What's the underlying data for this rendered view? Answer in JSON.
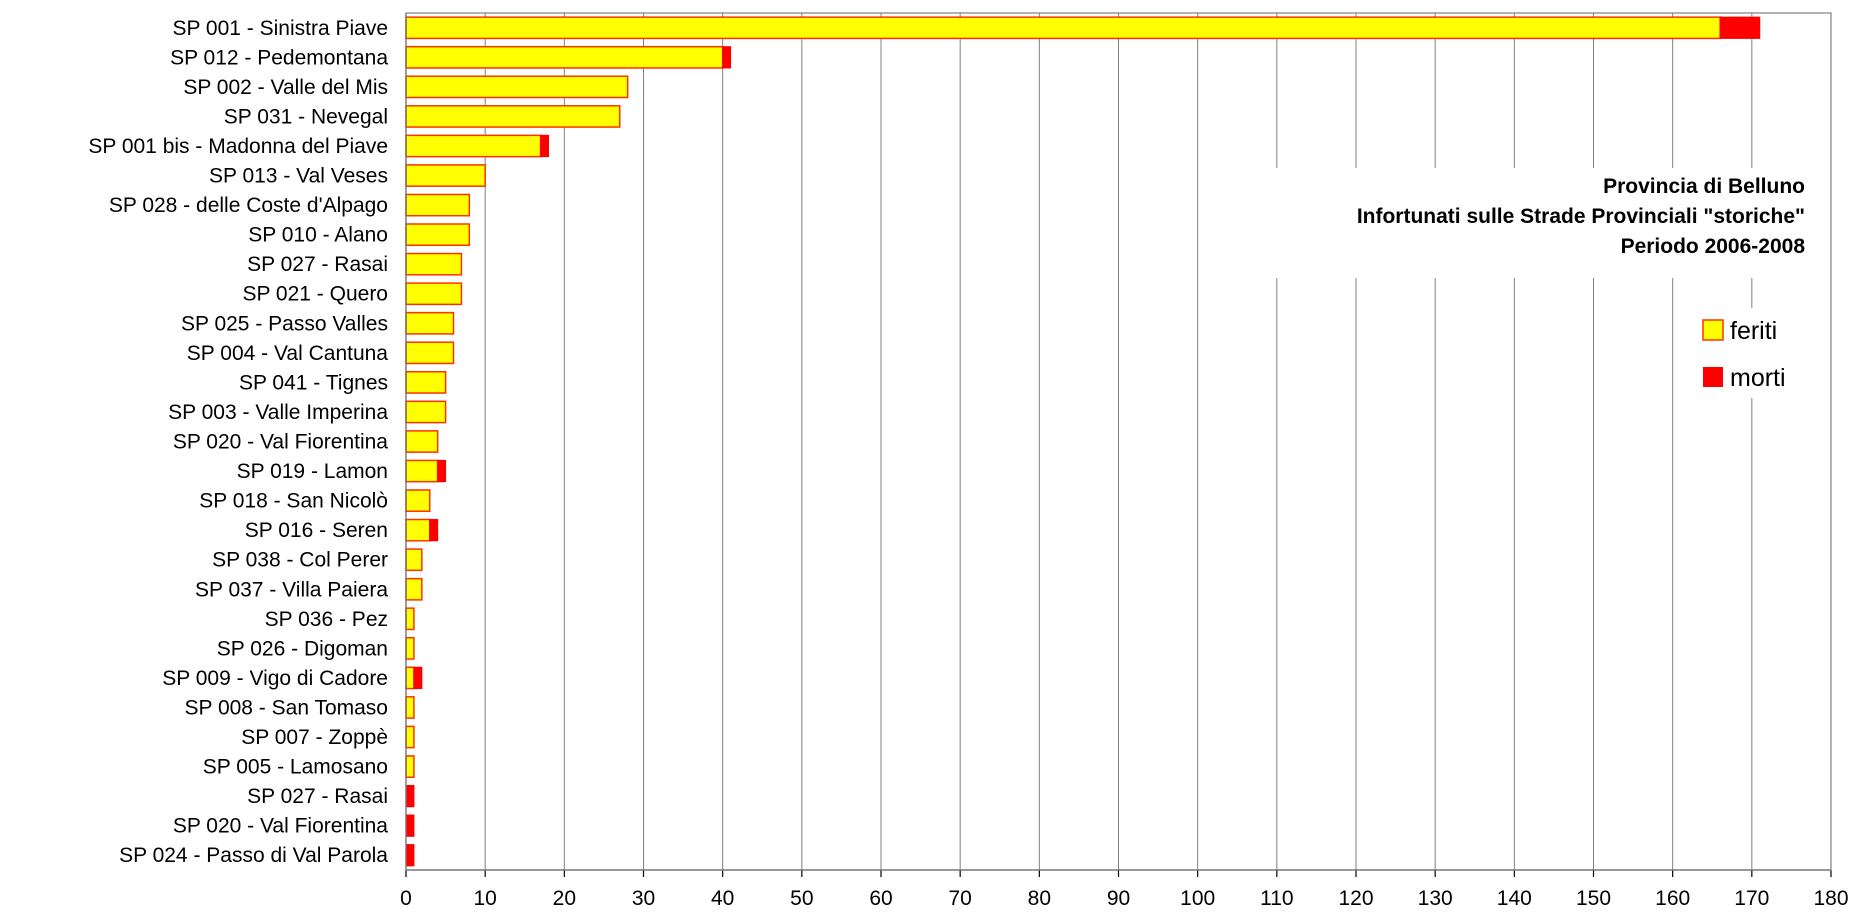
{
  "chart_data": {
    "type": "bar",
    "orientation": "horizontal",
    "stacked": true,
    "title_lines": [
      "Provincia di Belluno",
      "Infortunati sulle Strade Provinciali \"storiche\"",
      "Periodo 2006-2008"
    ],
    "categories": [
      "SP 001 -  Sinistra Piave",
      "SP 012 -  Pedemontana",
      "SP 002 -  Valle del Mis",
      "SP 031 -  Nevegal",
      "SP 001 bis -  Madonna del Piave",
      "SP 013 -  Val Veses",
      "SP 028 -  delle Coste d'Alpago",
      "SP 010 -  Alano",
      "SP 027 -  Rasai",
      "SP 021 -  Quero",
      "SP 025 -  Passo Valles",
      "SP 004 -  Val Cantuna",
      "SP 041 -  Tignes",
      "SP 003 -  Valle Imperina",
      "SP 020 -  Val Fiorentina",
      "SP 019 -  Lamon",
      "SP 018 -  San Nicolò",
      "SP 016 -  Seren",
      "SP 038 -  Col Perer",
      "SP 037 -  Villa Paiera",
      "SP 036 -  Pez",
      "SP 026 -  Digoman",
      "SP 009 -  Vigo di Cadore",
      "SP 008 -  San Tomaso",
      "SP 007 -  Zoppè",
      "SP 005 -  Lamosano",
      "SP 027 -  Rasai",
      "SP 020 -  Val Fiorentina",
      "SP 024 -  Passo di Val Parola"
    ],
    "series": [
      {
        "name": "feriti",
        "color": "#ffff00",
        "border": "#ff3300",
        "values": [
          166,
          40,
          28,
          27,
          17,
          10,
          8,
          8,
          7,
          7,
          6,
          6,
          5,
          5,
          4,
          4,
          3,
          3,
          2,
          2,
          1,
          1,
          1,
          1,
          1,
          1,
          0,
          0,
          0
        ]
      },
      {
        "name": "morti",
        "color": "#ff0000",
        "border": "#ff0000",
        "values": [
          5,
          1,
          0,
          0,
          1,
          0,
          0,
          0,
          0,
          0,
          0,
          0,
          0,
          0,
          0,
          1,
          0,
          1,
          0,
          0,
          0,
          0,
          1,
          0,
          0,
          0,
          1,
          1,
          1
        ]
      }
    ],
    "xlim": [
      0,
      180
    ],
    "xticks": [
      0,
      10,
      20,
      30,
      40,
      50,
      60,
      70,
      80,
      90,
      100,
      110,
      120,
      130,
      140,
      150,
      160,
      170,
      180
    ],
    "grid": "vertical",
    "legend_position": "right"
  }
}
